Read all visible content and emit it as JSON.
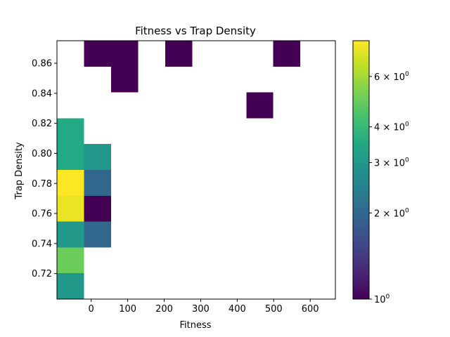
{
  "chart_data": {
    "type": "heatmap",
    "title": "Fitness vs Trap Density",
    "xlabel": "Fitness",
    "ylabel": "Trap Density",
    "x_bin_edges": [
      -93.8,
      -19.7,
      54.4,
      128.5,
      202.6,
      276.7,
      350.8,
      424.9,
      499.0,
      573.1,
      647.2,
      721.3
    ],
    "x_bin_edges_note": "",
    "xlim": [
      -93.8,
      669
    ],
    "ylim": [
      0.703,
      0.875
    ],
    "y_bin_edges": [
      0.703,
      0.7202,
      0.7374,
      0.7546,
      0.7718,
      0.789,
      0.8062,
      0.8234,
      0.8406,
      0.8578,
      0.875
    ],
    "x_ticks": [
      0,
      100,
      200,
      300,
      400,
      500,
      600
    ],
    "x_tick_labels": [
      "0",
      "100",
      "200",
      "300",
      "400",
      "500",
      "600"
    ],
    "y_ticks": [
      0.72,
      0.74,
      0.76,
      0.78,
      0.8,
      0.82,
      0.84,
      0.86
    ],
    "y_tick_labels": [
      "0.72",
      "0.74",
      "0.76",
      "0.78",
      "0.80",
      "0.82",
      "0.84",
      "0.86"
    ],
    "cells": [
      {
        "xi": 0,
        "yi": 0,
        "count": 3
      },
      {
        "xi": 0,
        "yi": 1,
        "count": 5
      },
      {
        "xi": 0,
        "yi": 2,
        "count": 3
      },
      {
        "xi": 0,
        "yi": 3,
        "count": 7.5
      },
      {
        "xi": 0,
        "yi": 4,
        "count": 8
      },
      {
        "xi": 0,
        "yi": 5,
        "count": 3.5
      },
      {
        "xi": 0,
        "yi": 6,
        "count": 3.5
      },
      {
        "xi": 1,
        "yi": 2,
        "count": 2
      },
      {
        "xi": 1,
        "yi": 3,
        "count": 1
      },
      {
        "xi": 1,
        "yi": 4,
        "count": 2
      },
      {
        "xi": 1,
        "yi": 5,
        "count": 3
      },
      {
        "xi": 1,
        "yi": 9,
        "count": 1
      },
      {
        "xi": 2,
        "yi": 9,
        "count": 1
      },
      {
        "xi": 2,
        "yi": 8,
        "count": 1
      },
      {
        "xi": 4,
        "yi": 9,
        "count": 1
      },
      {
        "xi": 7,
        "yi": 7,
        "count": 1
      },
      {
        "xi": 8,
        "yi": 9,
        "count": 1
      }
    ],
    "colormap": "viridis",
    "color_scale": "log",
    "color_range": [
      1,
      8
    ],
    "colorbar_ticks": [
      {
        "value": 1,
        "label_base": "10",
        "label_exp": "0",
        "label_mult": ""
      },
      {
        "value": 2,
        "label_base": "10",
        "label_exp": "0",
        "label_mult": "2 × "
      },
      {
        "value": 3,
        "label_base": "10",
        "label_exp": "0",
        "label_mult": "3 × "
      },
      {
        "value": 4,
        "label_base": "10",
        "label_exp": "0",
        "label_mult": "4 × "
      },
      {
        "value": 6,
        "label_base": "10",
        "label_exp": "0",
        "label_mult": "6 × "
      }
    ],
    "grid": false
  }
}
